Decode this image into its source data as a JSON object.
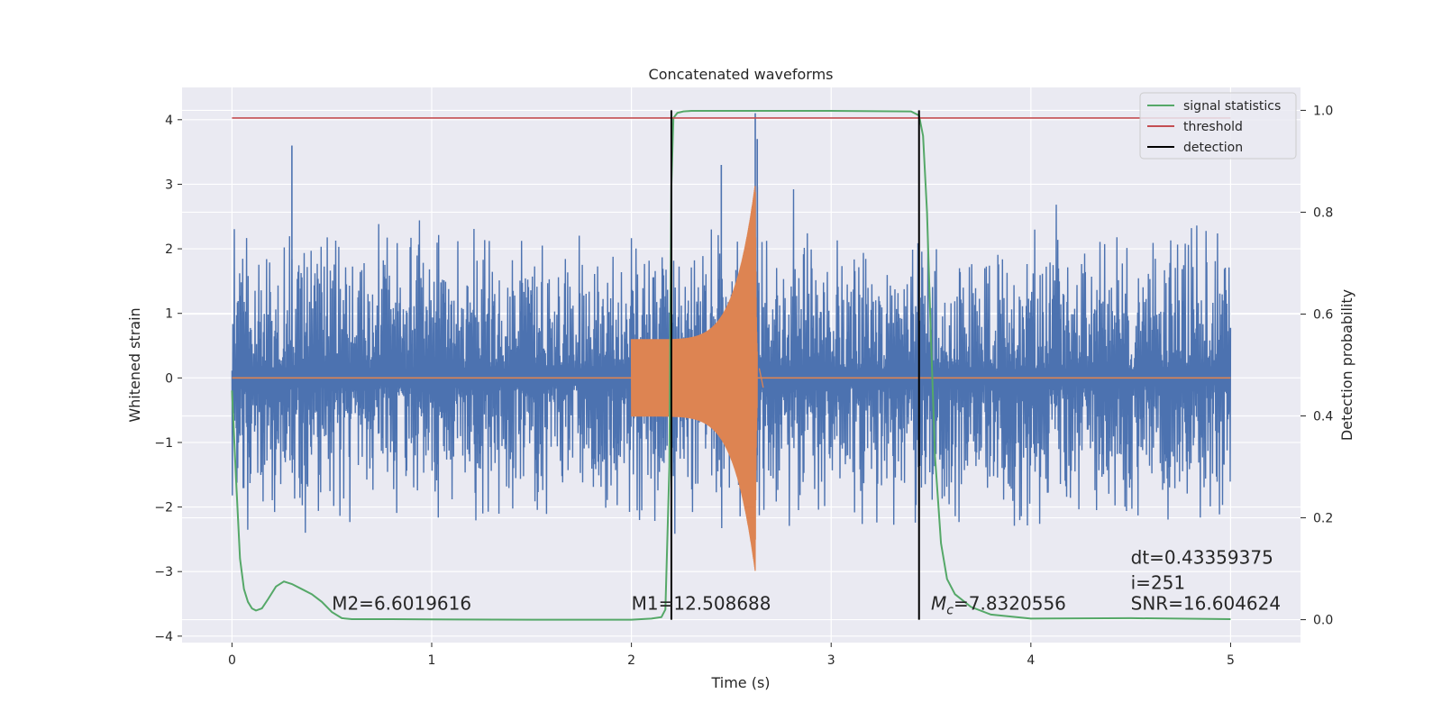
{
  "chart_data": {
    "type": "line",
    "title": "Concatenated waveforms",
    "xlabel": "Time (s)",
    "ylabel": "Whitened strain",
    "y2label": "Detection probability",
    "xlim": [
      -0.25,
      5.35
    ],
    "ylim": [
      -4.1,
      4.5
    ],
    "y2lim": [
      -0.045,
      1.045
    ],
    "x_ticks": [
      0,
      1,
      2,
      3,
      4,
      5
    ],
    "x_tick_labels": [
      "0",
      "1",
      "2",
      "3",
      "4",
      "5"
    ],
    "y_ticks": [
      -4,
      -3,
      -2,
      -1,
      0,
      1,
      2,
      3,
      4
    ],
    "y_tick_labels": [
      "−4",
      "−3",
      "−2",
      "−1",
      "0",
      "1",
      "2",
      "3",
      "4"
    ],
    "y2_ticks": [
      0.0,
      0.2,
      0.4,
      0.6,
      0.8,
      1.0
    ],
    "y2_tick_labels": [
      "0.0",
      "0.2",
      "0.4",
      "0.6",
      "0.8",
      "1.0"
    ],
    "grid": true,
    "legend_position": "top-right",
    "colors": {
      "background": "#eaeaf2",
      "grid": "#ffffff",
      "noise": "#4c72b0",
      "template": "#dd8452",
      "signal_statistics": "#55a868",
      "threshold": "#c44e52",
      "detection": "#000000"
    },
    "series": [
      {
        "name": "signal statistics",
        "axis": "right",
        "x": [
          0.0,
          0.02,
          0.04,
          0.06,
          0.08,
          0.1,
          0.12,
          0.15,
          0.18,
          0.22,
          0.26,
          0.3,
          0.35,
          0.4,
          0.45,
          0.5,
          0.55,
          0.6,
          0.8,
          1.0,
          1.5,
          2.0,
          2.1,
          2.15,
          2.17,
          2.19,
          2.2,
          2.21,
          2.23,
          2.26,
          2.3,
          2.5,
          3.0,
          3.4,
          3.44,
          3.46,
          3.48,
          3.5,
          3.52,
          3.55,
          3.58,
          3.62,
          3.7,
          3.8,
          4.0,
          4.5,
          5.0
        ],
        "y": [
          0.45,
          0.28,
          0.12,
          0.06,
          0.035,
          0.022,
          0.018,
          0.022,
          0.04,
          0.065,
          0.075,
          0.07,
          0.06,
          0.05,
          0.035,
          0.015,
          0.003,
          0.001,
          0.001,
          0.0005,
          0.0,
          0.0,
          0.002,
          0.005,
          0.02,
          0.3,
          0.85,
          0.985,
          0.995,
          0.998,
          0.999,
          0.999,
          0.999,
          0.998,
          0.99,
          0.95,
          0.8,
          0.55,
          0.32,
          0.15,
          0.08,
          0.05,
          0.025,
          0.01,
          0.002,
          0.003,
          0.001
        ]
      },
      {
        "name": "threshold",
        "axis": "right",
        "x": [
          0.0,
          5.0
        ],
        "y": [
          0.985,
          0.985
        ]
      },
      {
        "name": "detection",
        "axis": "right",
        "x": [
          2.2,
          3.44
        ],
        "ymin": 0.0,
        "ymax": 1.0
      }
    ],
    "noise_series": {
      "axis": "left",
      "x_range": [
        0.0,
        5.0
      ],
      "peak_level": 2.3,
      "spikes": [
        {
          "x": 0.3,
          "y": 3.6
        },
        {
          "x": 2.45,
          "y": 3.3
        },
        {
          "x": 2.62,
          "y": 4.1
        },
        {
          "x": 2.63,
          "y": 3.7
        }
      ]
    },
    "template_series": {
      "axis": "left",
      "x_range": [
        2.0,
        2.63
      ],
      "amp_start": 0.6,
      "amp_peak": 3.0,
      "peak_x": 2.62
    },
    "annotations": [
      {
        "text": "M2=6.6019616",
        "x": 0.5,
        "y": 0.02
      },
      {
        "text": "M1=12.508688",
        "x": 2.0,
        "y": 0.02
      },
      {
        "text_prefix": "M",
        "text_sub": "c",
        "text_suffix": "=7.8320556",
        "x": 3.5,
        "y": 0.02
      },
      {
        "text": "dt=0.43359375",
        "x": 4.5,
        "y": 0.11
      },
      {
        "text": " i=251",
        "x": 4.5,
        "y": 0.06
      },
      {
        "text": "SNR=16.604624",
        "x": 4.5,
        "y": 0.02
      }
    ]
  }
}
